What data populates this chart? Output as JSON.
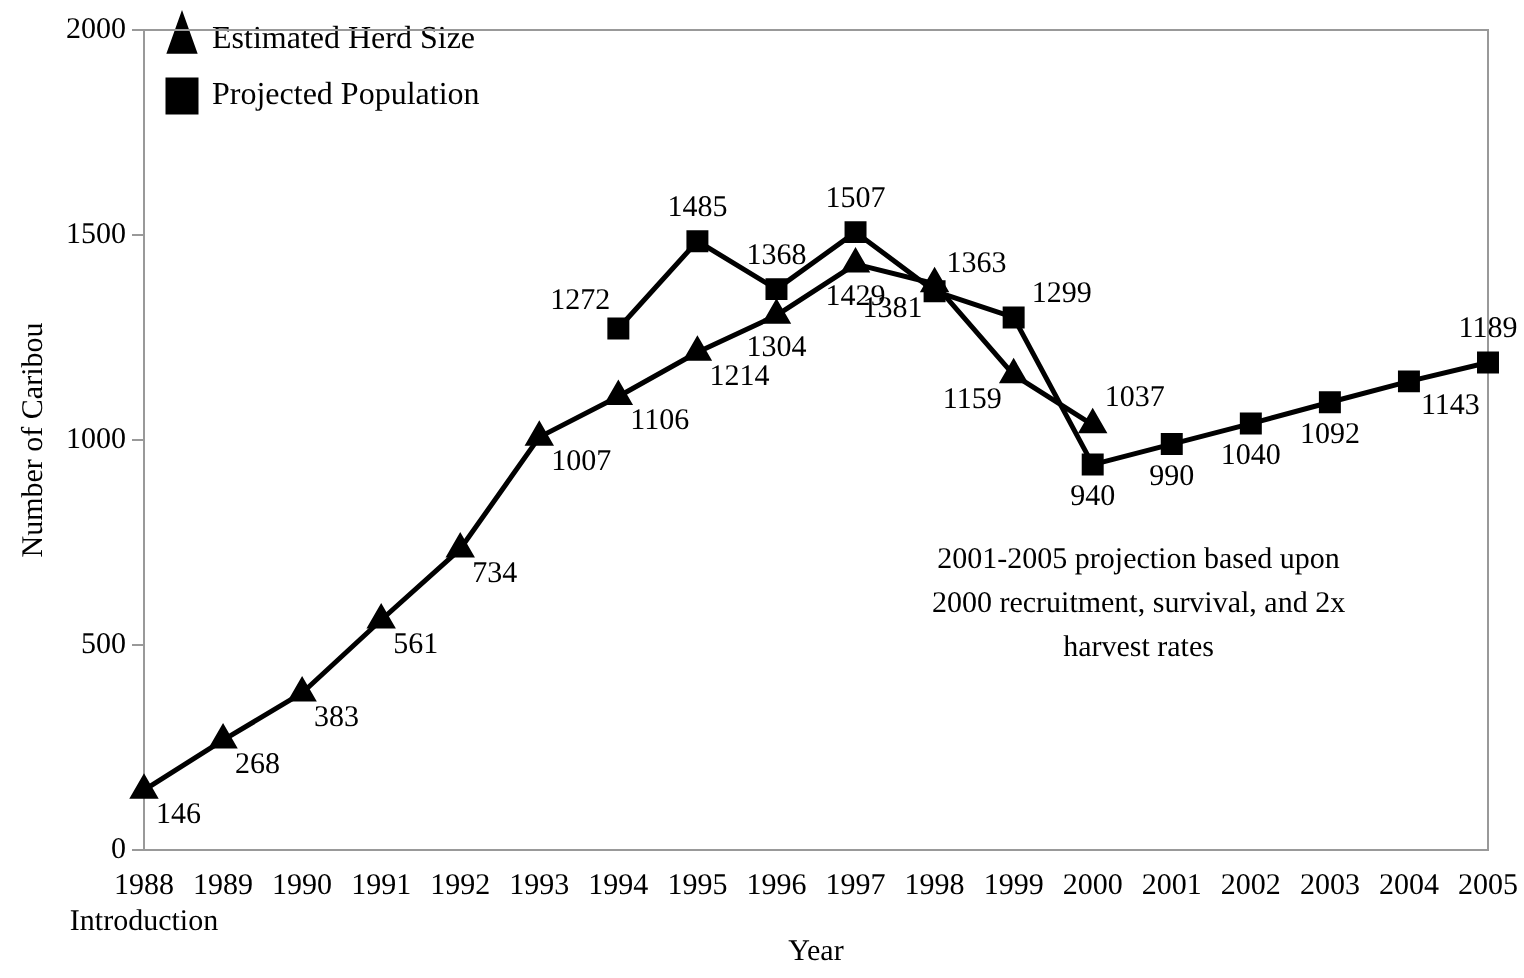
{
  "chart_data": {
    "type": "line",
    "xlabel": "Year",
    "ylabel": "Number of Caribou",
    "categories": [
      "1988\nIntroduction",
      "1989",
      "1990",
      "1991",
      "1992",
      "1993",
      "1994",
      "1995",
      "1996",
      "1997",
      "1998",
      "1999",
      "2000",
      "2001",
      "2002",
      "2003",
      "2004",
      "2005"
    ],
    "series": [
      {
        "name": "Estimated Herd Size",
        "color": "#000000",
        "marker": "triangle",
        "values": [
          146,
          268,
          383,
          561,
          734,
          1007,
          1106,
          1214,
          1304,
          1429,
          1381,
          1159,
          1037,
          null,
          null,
          null,
          null,
          null
        ]
      },
      {
        "name": "Projected Population",
        "color": "#000000",
        "marker": "square",
        "values": [
          null,
          null,
          null,
          null,
          null,
          null,
          1272,
          1485,
          1368,
          1507,
          1363,
          1299,
          940,
          990,
          1040,
          1092,
          1143,
          1189
        ]
      }
    ],
    "ylim": [
      0,
      2000
    ],
    "yticks": [
      0,
      500,
      1000,
      1500,
      2000
    ],
    "grid": false,
    "legend": "top left",
    "data_labels": true,
    "annotations": [
      "2001-2005 projection based upon\n2000 recruitment, survival, and 2x\nharvest rates"
    ]
  }
}
